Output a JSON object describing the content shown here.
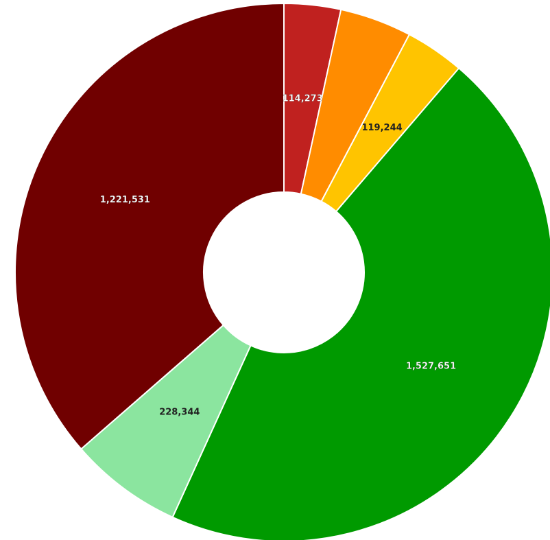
{
  "chart_data": {
    "type": "donut",
    "values": [
      114273,
      145000,
      119244,
      1527651,
      228344,
      1221531
    ],
    "value_labels": [
      "114,273",
      null,
      "119,244",
      "1,527,651",
      "228,344",
      "1,221,531"
    ],
    "colors": [
      "#c0211f",
      "#ff8c00",
      "#ffc400",
      "#009a00",
      "#8be59f",
      "#700000"
    ]
  }
}
